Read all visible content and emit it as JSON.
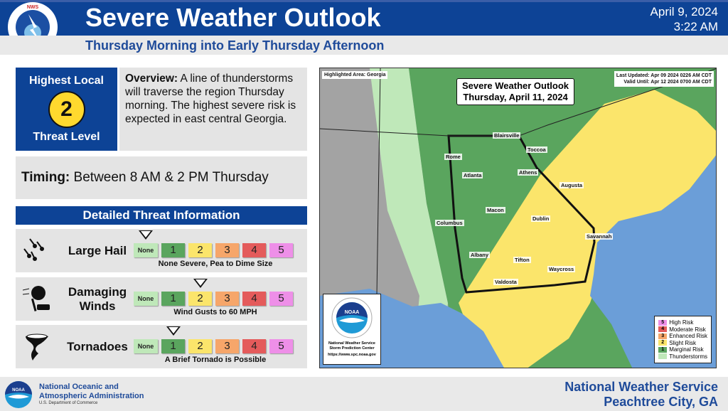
{
  "header": {
    "title": "Severe Weather Outlook",
    "date": "April 9, 2024",
    "time": "3:22 AM",
    "subtitle": "Thursday Morning into Early Thursday Afternoon",
    "logo_text": "NATIONAL WEATHER SERVICE"
  },
  "threat": {
    "top": "Highest Local",
    "level": "2",
    "bottom": "Threat Level"
  },
  "overview": {
    "label": "Overview:",
    "text": " A line of thunderstorms will traverse the region Thursday morning. The highest severe risk is expected in east central Georgia."
  },
  "timing": {
    "label": "Timing:",
    "text": " Between 8 AM & 2 PM Thursday"
  },
  "detailed": {
    "title": "Detailed Threat Information",
    "scale": [
      "None",
      "1",
      "2",
      "3",
      "4",
      "5"
    ],
    "scale_colors": [
      "#bfe8b9",
      "#5aa55e",
      "#fbe56b",
      "#f6a66a",
      "#e45b5b",
      "#ee8fe8"
    ],
    "rows": [
      {
        "name": "Large Hail",
        "icon": "hail-icon",
        "level": "None",
        "description": "None Severe, Pea to Dime Size"
      },
      {
        "name": "Damaging Winds",
        "icon": "wind-damage-icon",
        "level": "2",
        "description": "Wind Gusts to 60 MPH"
      },
      {
        "name": "Tornadoes",
        "icon": "tornado-icon",
        "level": "1",
        "description": "A Brief Tornado is Possible"
      }
    ]
  },
  "map": {
    "highlighted": "Highlighted Area: Georgia",
    "title1": "Severe Weather Outlook",
    "title2": "Thursday, April 11, 2024",
    "last_updated": "Last Updated: Apr 09 2024 0226 AM CDT",
    "valid_until": "Valid Until: Apr 12 2024 0700 AM CDT",
    "cities": [
      "Blairsville",
      "Rome",
      "Toccoa",
      "Atlanta",
      "Athens",
      "Augusta",
      "Macon",
      "Dublin",
      "Columbus",
      "Savannah",
      "Albany",
      "Tifton",
      "Waycross",
      "Valdosta"
    ],
    "legend": [
      {
        "num": "5",
        "label": "High Risk",
        "color": "#ee8fe8"
      },
      {
        "num": "4",
        "label": "Moderate Risk",
        "color": "#e45b5b"
      },
      {
        "num": "3",
        "label": "Enhanced Risk",
        "color": "#f6a66a"
      },
      {
        "num": "2",
        "label": "Slight Risk",
        "color": "#fbe56b"
      },
      {
        "num": "1",
        "label": "Marginal Risk",
        "color": "#5aa55e"
      },
      {
        "num": "",
        "label": "Thunderstorms",
        "color": "#bfe8b9"
      }
    ],
    "spc": {
      "logo_text": "NOAA",
      "line1": "National Weather Service",
      "line2": "Storm Prediction Center",
      "url": "https://www.spc.noaa.gov"
    }
  },
  "footer": {
    "noaa_line1": "National Oceanic and",
    "noaa_line2": "Atmospheric Administration",
    "noaa_dept": "U.S. Department of Commerce",
    "noaa_logo": "NOAA",
    "nws": "National Weather Service",
    "office": "Peachtree City, GA"
  }
}
